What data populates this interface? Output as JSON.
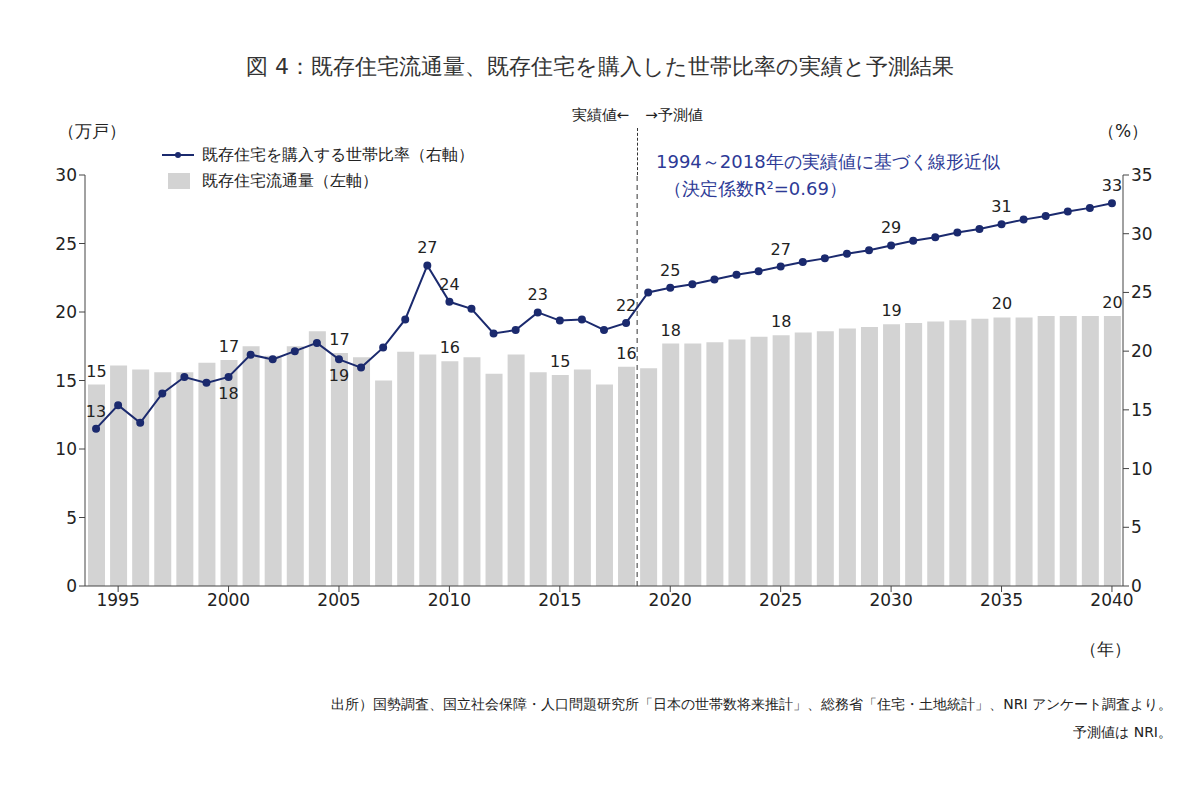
{
  "chart_data": {
    "type": "bar_line",
    "title": "図 4：既存住宅流通量、既存住宅を購入した世帯比率の実績と予測結果",
    "x_label": "（年）",
    "y_label": "（万戸）",
    "y2_label": "（%）",
    "x": [
      1994,
      1995,
      1996,
      1997,
      1998,
      1999,
      2000,
      2001,
      2002,
      2003,
      2004,
      2005,
      2006,
      2007,
      2008,
      2009,
      2010,
      2011,
      2012,
      2013,
      2014,
      2015,
      2016,
      2017,
      2018,
      2019,
      2020,
      2021,
      2022,
      2023,
      2024,
      2025,
      2026,
      2027,
      2028,
      2029,
      2030,
      2031,
      2032,
      2033,
      2034,
      2035,
      2036,
      2037,
      2038,
      2039,
      2040
    ],
    "xlim": [
      1993.5,
      2040.5
    ],
    "xticks": [
      1995,
      2000,
      2005,
      2010,
      2015,
      2020,
      2025,
      2030,
      2035,
      2040
    ],
    "ylim": [
      0,
      30
    ],
    "yticks": [
      0,
      5,
      10,
      15,
      20,
      25,
      30
    ],
    "y2lim": [
      0,
      35
    ],
    "y2ticks": [
      0,
      5,
      10,
      15,
      20,
      25,
      30,
      35
    ],
    "grid": false,
    "legend": "top-left",
    "series": [
      {
        "name": "既存住宅を購入する世帯比率（右軸）",
        "type": "line",
        "axis": "y2",
        "color": "#1b2a6e",
        "marker": "circle",
        "values": [
          13.4,
          15.4,
          13.9,
          16.4,
          17.8,
          17.3,
          17.8,
          19.7,
          19.3,
          20.0,
          20.7,
          19.3,
          18.6,
          20.3,
          22.7,
          27.3,
          24.2,
          23.6,
          21.5,
          21.8,
          23.3,
          22.6,
          22.7,
          21.8,
          22.4,
          25.0,
          25.4,
          25.7,
          26.1,
          26.5,
          26.8,
          27.2,
          27.6,
          27.9,
          28.3,
          28.6,
          29.0,
          29.4,
          29.7,
          30.1,
          30.4,
          30.8,
          31.2,
          31.5,
          31.9,
          32.2,
          32.6
        ],
        "value_labels": [
          "13",
          null,
          null,
          null,
          null,
          null,
          "18",
          null,
          null,
          null,
          null,
          "19",
          null,
          null,
          null,
          "27",
          "24",
          null,
          null,
          null,
          "23",
          null,
          null,
          null,
          "22",
          null,
          "25",
          null,
          null,
          null,
          null,
          "27",
          null,
          null,
          null,
          null,
          "29",
          null,
          null,
          null,
          null,
          "31",
          null,
          null,
          null,
          null,
          "33"
        ]
      },
      {
        "name": "既存住宅流通量（左軸）",
        "type": "bar",
        "axis": "y",
        "color": "#d3d3d3",
        "values": [
          14.7,
          16.1,
          15.8,
          15.6,
          15.6,
          16.3,
          16.5,
          17.5,
          16.8,
          17.5,
          18.6,
          17.0,
          16.7,
          15.0,
          17.1,
          16.9,
          16.4,
          16.7,
          15.5,
          16.9,
          15.6,
          15.4,
          15.8,
          14.7,
          16.0,
          15.9,
          17.7,
          17.7,
          17.8,
          18.0,
          18.2,
          18.3,
          18.5,
          18.6,
          18.8,
          18.9,
          19.1,
          19.2,
          19.3,
          19.4,
          19.5,
          19.6,
          19.6,
          19.7,
          19.7,
          19.7,
          19.7
        ],
        "value_labels": [
          "15",
          null,
          null,
          null,
          null,
          null,
          "17",
          null,
          null,
          null,
          null,
          "17",
          null,
          null,
          null,
          null,
          "16",
          null,
          null,
          null,
          null,
          "15",
          null,
          null,
          "16",
          null,
          "18",
          null,
          null,
          null,
          null,
          "18",
          null,
          null,
          null,
          null,
          "19",
          null,
          null,
          null,
          null,
          "20",
          null,
          null,
          null,
          null,
          "20"
        ]
      }
    ],
    "divider": {
      "x": 2018.5,
      "left_text": "実績値←",
      "right_text": "→予測値"
    },
    "trend_note": {
      "color": "#2d3a96",
      "text": [
        "1994～2018年の実績値に基づく線形近似",
        "（決定係数R²=0.69）"
      ]
    },
    "source": [
      "出所）国勢調査、国立社会保障・人口問題研究所「日本の世帯数将来推計」、総務省「住宅・土地統計」、NRI アンケート調査より。",
      "予測値は NRI。"
    ]
  }
}
